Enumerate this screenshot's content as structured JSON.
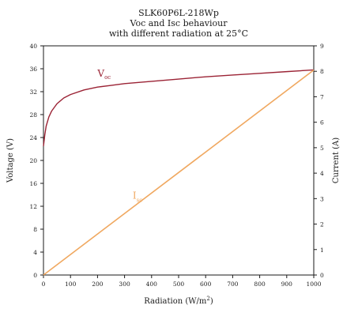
{
  "chart_data": {
    "type": "line",
    "title": [
      "SLK60P6L-218Wp",
      "Voc and Isc behaviour",
      "with different radiation at 25°C"
    ],
    "xlabel": "Radiation (W/m",
    "xlabel_sup": "2",
    "xlabel_tail": ")",
    "ylabel_left": "Voltage (V)",
    "ylabel_right": "Current (A)",
    "xlim": [
      0,
      1000
    ],
    "ylim_left": [
      0,
      40
    ],
    "ylim_right": [
      0,
      9
    ],
    "x_ticks": [
      "0",
      "100",
      "200",
      "300",
      "400",
      "500",
      "600",
      "700",
      "800",
      "900",
      "1000"
    ],
    "y_left_ticks": [
      "0",
      "4",
      "8",
      "12",
      "16",
      "20",
      "24",
      "28",
      "32",
      "36",
      "40"
    ],
    "y_right_ticks": [
      "0",
      "1",
      "2",
      "3",
      "4",
      "5",
      "6",
      "7",
      "8",
      "9"
    ],
    "series": [
      {
        "name": "V",
        "subscript": "oc",
        "axis": "left",
        "color": "#9b2335",
        "x": [
          0,
          5,
          10,
          20,
          30,
          50,
          75,
          100,
          150,
          200,
          250,
          300,
          400,
          500,
          600,
          700,
          800,
          900,
          1000
        ],
        "y": [
          22.5,
          24.5,
          26.0,
          27.6,
          28.6,
          29.9,
          30.9,
          31.5,
          32.3,
          32.8,
          33.1,
          33.4,
          33.8,
          34.2,
          34.6,
          34.9,
          35.2,
          35.5,
          35.8
        ]
      },
      {
        "name": "I",
        "subscript": "sc",
        "axis": "right",
        "color": "#f0a860",
        "x": [
          0,
          1000
        ],
        "y": [
          0,
          8.05
        ]
      }
    ],
    "grid": false,
    "legend": "inline"
  }
}
